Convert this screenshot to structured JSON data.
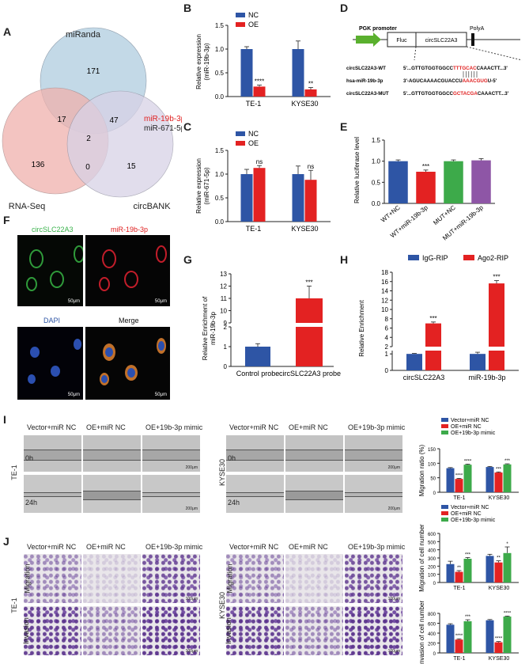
{
  "panel_letters": [
    "A",
    "B",
    "C",
    "D",
    "E",
    "F",
    "G",
    "H",
    "I",
    "J"
  ],
  "venn": {
    "sets": [
      "miRanda",
      "RNA-Seq",
      "circBANK"
    ],
    "regions": {
      "miRanda_only": "171",
      "rnaseq_only": "136",
      "circbank_only": "15",
      "miRanda_rnaseq": "17",
      "miRanda_circbank": "47",
      "rnaseq_circbank": "0",
      "all": "2"
    },
    "highlight": [
      "miR-19b-3p",
      "miR-671-5p"
    ],
    "colors": {
      "miRanda": "#b9d3e3",
      "rnaseq": "#efb1ad",
      "circbank": "#d8d2e6",
      "highlight": "#e02020"
    }
  },
  "legend_nc_oe": {
    "nc": "NC",
    "oe": "OE",
    "nc_color": "#2e55a5",
    "oe_color": "#e32222"
  },
  "chart_data": [
    {
      "id": "B",
      "type": "bar",
      "ylabel": "Relative expression\n(miR-19b-3p)",
      "categories": [
        "TE-1",
        "KYSE30"
      ],
      "ylim": [
        0,
        1.5
      ],
      "ticks": [
        "0.0",
        "0.5",
        "1.0",
        "1.5"
      ],
      "series": [
        {
          "name": "NC",
          "values": [
            1.0,
            1.0
          ],
          "err": [
            0.05,
            0.17
          ]
        },
        {
          "name": "OE",
          "values": [
            0.21,
            0.15
          ],
          "err": [
            0.03,
            0.04
          ]
        }
      ],
      "annotations": [
        "****",
        "**"
      ]
    },
    {
      "id": "C",
      "type": "bar",
      "ylabel": "Relative expression\n(miR-671-5p)",
      "categories": [
        "TE-1",
        "KYSE30"
      ],
      "ylim": [
        0,
        1.5
      ],
      "ticks": [
        "0.0",
        "0.5",
        "1.0",
        "1.5"
      ],
      "series": [
        {
          "name": "NC",
          "values": [
            1.0,
            1.0
          ],
          "err": [
            0.1,
            0.17
          ]
        },
        {
          "name": "OE",
          "values": [
            1.13,
            0.88
          ],
          "err": [
            0.05,
            0.2
          ]
        }
      ],
      "annotations": [
        "ns",
        "ns"
      ]
    },
    {
      "id": "E",
      "type": "bar",
      "ylabel": "Relative luciferase level",
      "categories": [
        "WT+NC",
        "WT+miR-19b-3p",
        "MUT+NC",
        "MUT+miR-19b-3p"
      ],
      "ylim": [
        0,
        1.5
      ],
      "ticks": [
        "0.0",
        "0.5",
        "1.0",
        "1.5"
      ],
      "values": [
        1.0,
        0.75,
        1.0,
        1.02
      ],
      "err": [
        0.03,
        0.04,
        0.03,
        0.04
      ],
      "colors": [
        "#2e55a5",
        "#e32222",
        "#3daa4a",
        "#8e56a6"
      ],
      "annotations": [
        "",
        "***",
        "",
        ""
      ]
    },
    {
      "id": "G",
      "type": "bar",
      "ylabel": "Relative Enrichment of\nmiR-19b-3p",
      "categories": [
        "Control probe",
        "circSLC22A3 probe"
      ],
      "ticks_low": [
        "0",
        "1",
        "2"
      ],
      "ticks_high": [
        "9",
        "10",
        "11",
        "12",
        "13"
      ],
      "values": [
        1.0,
        11.0
      ],
      "err": [
        0.15,
        1.0
      ],
      "colors": [
        "#2e55a5",
        "#e32222"
      ],
      "annotations": [
        "",
        "***"
      ]
    },
    {
      "id": "H",
      "type": "bar",
      "ylabel": "Relative Enrichment",
      "categories": [
        "circSLC22A3",
        "miR-19b-3p"
      ],
      "ticks_low": [
        "0",
        "1"
      ],
      "ticks_high": [
        "2",
        "4",
        "6",
        "8",
        "10",
        "12",
        "14",
        "16",
        "18"
      ],
      "series": [
        {
          "name": "IgG-RIP",
          "values": [
            1.0,
            1.0
          ],
          "err": [
            0.03,
            0.1
          ]
        },
        {
          "name": "Ago2-RIP",
          "values": [
            7.0,
            15.6
          ],
          "err": [
            0.3,
            0.6
          ]
        }
      ],
      "colors": [
        "#2e55a5",
        "#e32222"
      ],
      "annotations": [
        "***",
        "***"
      ]
    },
    {
      "id": "I",
      "type": "bar",
      "ylabel": "Migration ratio (%)",
      "categories": [
        "TE-1",
        "KYSE30"
      ],
      "ylim": [
        0,
        150
      ],
      "ticks": [
        "0",
        "50",
        "100",
        "150"
      ],
      "series": [
        {
          "name": "Vector+miR NC",
          "values": [
            83,
            87
          ],
          "err": [
            2,
            2
          ]
        },
        {
          "name": "OE+miR NC",
          "values": [
            46,
            68
          ],
          "err": [
            2,
            2
          ]
        },
        {
          "name": "OE+19b-3p mimic",
          "values": [
            95,
            96
          ],
          "err": [
            2,
            2
          ]
        }
      ],
      "annotations": [
        "****",
        "****",
        "***",
        "***"
      ]
    },
    {
      "id": "J1",
      "type": "bar",
      "ylabel": "Migration of cell number",
      "categories": [
        "TE-1",
        "KYSE30"
      ],
      "ylim": [
        0,
        600
      ],
      "ticks": [
        "0",
        "100",
        "200",
        "300",
        "400",
        "500",
        "600"
      ],
      "series": [
        {
          "name": "Vector+miR NC",
          "values": [
            225,
            325
          ],
          "err": [
            35,
            20
          ]
        },
        {
          "name": "OE+miR NC",
          "values": [
            130,
            245
          ],
          "err": [
            15,
            20
          ]
        },
        {
          "name": "OE+19b-3p mimic",
          "values": [
            290,
            360
          ],
          "err": [
            15,
            75
          ]
        }
      ],
      "annotations": [
        "**",
        "***",
        "**",
        "*"
      ]
    },
    {
      "id": "J2",
      "type": "bar",
      "ylabel": "Invasion of cell number",
      "categories": [
        "TE-1",
        "KYSE30"
      ],
      "ylim": [
        0,
        800
      ],
      "ticks": [
        "0",
        "200",
        "400",
        "600",
        "800"
      ],
      "series": [
        {
          "name": "Vector+miR NC",
          "values": [
            570,
            660
          ],
          "err": [
            20,
            15
          ]
        },
        {
          "name": "OE+miR NC",
          "values": [
            270,
            215
          ],
          "err": [
            15,
            15
          ]
        },
        {
          "name": "OE+19b-3p mimic",
          "values": [
            640,
            735
          ],
          "err": [
            30,
            10
          ]
        }
      ],
      "annotations": [
        "****",
        "***",
        "****",
        "****"
      ]
    }
  ],
  "construct": {
    "promoter": "PGK promoter",
    "fluc": "Fluc",
    "insert": "circSLC22A3",
    "polya": "PolyA",
    "rows": [
      {
        "label": "circSLC22A3-WT",
        "pre": "5'...GTTGTGGTGGCC",
        "site": "TTTGCAC",
        "post": "CAAACTT...3'"
      },
      {
        "label": "hsa-miR-19b-3p",
        "pre": "3'-AGUCAAAACGUACCU",
        "site": "AAACGUG",
        "post": "U-5'"
      },
      {
        "label": "circSLC22A3-MUT",
        "pre": "5'...GTTGTGGTGGCC",
        "site": "GCTACGA",
        "post": "CAAACTT...3'"
      }
    ],
    "site_color": "#e02020"
  },
  "fish": {
    "labels": [
      "circSLC22A3",
      "miR-19b-3p",
      "DAPI",
      "Merge"
    ],
    "label_colors": [
      "#38b24a",
      "#e02020",
      "#2e55a5",
      "#111111"
    ],
    "scale": "50μm"
  },
  "legend_groups": [
    "Vector+miR NC",
    "OE+miR NC",
    "OE+19b-3p mimic"
  ],
  "legend_group_colors": [
    "#2e55a5",
    "#e32222",
    "#3daa4a"
  ],
  "wound": {
    "groups": [
      "Vector+miR NC",
      "OE+miR NC",
      "OE+19b-3p mimic"
    ],
    "cells": [
      "TE-1",
      "KYSE30"
    ],
    "times": [
      "0h",
      "24h"
    ],
    "scale": "200μm"
  },
  "transwell": {
    "groups": [
      "Vector+miR NC",
      "OE+miR NC",
      "OE+19b-3p mimic"
    ],
    "cells": [
      "TE-1",
      "KYSE30"
    ],
    "rows": [
      "Migration",
      "Invasion"
    ],
    "scale": "100μm"
  }
}
